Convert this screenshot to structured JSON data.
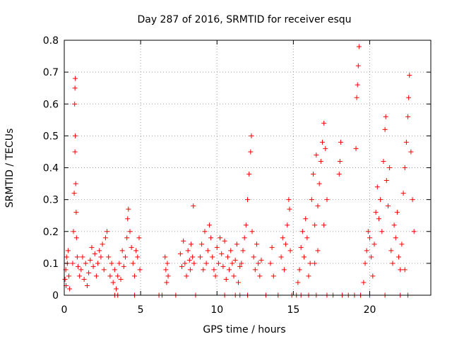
{
  "chart_data": {
    "type": "scatter",
    "title": "Day 287 of 2016, SRMTID for receiver esqu",
    "xlabel": "GPS time / hours",
    "ylabel": "SRMTID / TECUs",
    "xlim": [
      0,
      24
    ],
    "ylim": [
      0,
      0.8
    ],
    "grid": true,
    "marker": "+",
    "color": "#ff0000",
    "x_ticks": [
      0,
      5,
      10,
      15,
      20
    ],
    "x_tick_labels": [
      "0",
      "5",
      "10",
      "15",
      "20"
    ],
    "y_ticks": [
      0,
      0.1,
      0.2,
      0.3,
      0.4,
      0.5,
      0.6,
      0.7,
      0.8
    ],
    "y_tick_labels": [
      "0",
      "0.1",
      "0.2",
      "0.3",
      "0.4",
      "0.5",
      "0.6",
      "0.7",
      "0.8"
    ],
    "series": [
      {
        "name": "SRMTID",
        "points": [
          [
            0.05,
            0.05
          ],
          [
            0.1,
            0.08
          ],
          [
            0.15,
            0.12
          ],
          [
            0.2,
            0.1
          ],
          [
            0.25,
            0.14
          ],
          [
            0.3,
            0.06
          ],
          [
            0.35,
            0.02
          ],
          [
            0.12,
            0.03
          ],
          [
            0.55,
            0.1
          ],
          [
            0.6,
            0.2
          ],
          [
            0.65,
            0.32
          ],
          [
            0.7,
            0.45
          ],
          [
            0.72,
            0.5
          ],
          [
            0.75,
            0.35
          ],
          [
            0.78,
            0.26
          ],
          [
            0.68,
            0.6
          ],
          [
            0.7,
            0.65
          ],
          [
            0.72,
            0.68
          ],
          [
            0.8,
            0.18
          ],
          [
            0.85,
            0.12
          ],
          [
            0.9,
            0.09
          ],
          [
            1.0,
            0.06
          ],
          [
            1.1,
            0.08
          ],
          [
            1.2,
            0.12
          ],
          [
            1.3,
            0.05
          ],
          [
            1.4,
            0.1
          ],
          [
            1.5,
            0.03
          ],
          [
            1.6,
            0.07
          ],
          [
            1.7,
            0.11
          ],
          [
            1.8,
            0.15
          ],
          [
            1.9,
            0.09
          ],
          [
            2.0,
            0.13
          ],
          [
            2.1,
            0.06
          ],
          [
            2.2,
            0.1
          ],
          [
            2.3,
            0.14
          ],
          [
            2.4,
            0.12
          ],
          [
            2.5,
            0.16
          ],
          [
            2.6,
            0.08
          ],
          [
            2.7,
            0.18
          ],
          [
            2.8,
            0.2
          ],
          [
            2.9,
            0.12
          ],
          [
            3.0,
            0.06
          ],
          [
            3.1,
            0.1
          ],
          [
            3.2,
            0.04
          ],
          [
            3.3,
            0.08
          ],
          [
            3.4,
            0.02
          ],
          [
            3.5,
            0.06
          ],
          [
            3.6,
            0.1
          ],
          [
            3.7,
            0.05
          ],
          [
            3.8,
            0.14
          ],
          [
            3.9,
            0.09
          ],
          [
            4.0,
            0.12
          ],
          [
            4.1,
            0.18
          ],
          [
            4.15,
            0.24
          ],
          [
            4.2,
            0.27
          ],
          [
            4.3,
            0.2
          ],
          [
            4.4,
            0.15
          ],
          [
            4.5,
            0.1
          ],
          [
            4.6,
            0.06
          ],
          [
            4.7,
            0.14
          ],
          [
            4.8,
            0.12
          ],
          [
            4.9,
            0.18
          ],
          [
            4.95,
            0.08
          ],
          [
            3.3,
            0.0
          ],
          [
            3.5,
            0.0
          ],
          [
            4.6,
            0.0
          ],
          [
            6.2,
            0.0
          ],
          [
            6.4,
            0.0
          ],
          [
            6.6,
            0.12
          ],
          [
            6.65,
            0.08
          ],
          [
            6.7,
            0.04
          ],
          [
            6.75,
            0.1
          ],
          [
            6.8,
            0.06
          ],
          [
            7.3,
            0.0
          ],
          [
            7.6,
            0.13
          ],
          [
            7.7,
            0.09
          ],
          [
            7.8,
            0.17
          ],
          [
            7.9,
            0.1
          ],
          [
            8.0,
            0.06
          ],
          [
            8.1,
            0.14
          ],
          [
            8.2,
            0.11
          ],
          [
            8.25,
            0.08
          ],
          [
            8.3,
            0.16
          ],
          [
            8.4,
            0.12
          ],
          [
            8.45,
            0.28
          ],
          [
            8.5,
            0.1
          ],
          [
            8.6,
            0.0
          ],
          [
            8.9,
            0.12
          ],
          [
            9.0,
            0.16
          ],
          [
            9.1,
            0.08
          ],
          [
            9.2,
            0.2
          ],
          [
            9.3,
            0.1
          ],
          [
            9.4,
            0.14
          ],
          [
            9.5,
            0.22
          ],
          [
            9.6,
            0.18
          ],
          [
            9.7,
            0.12
          ],
          [
            9.8,
            0.08
          ],
          [
            9.9,
            0.06
          ],
          [
            10.0,
            0.15
          ],
          [
            10.1,
            0.1
          ],
          [
            10.2,
            0.18
          ],
          [
            10.3,
            0.13
          ],
          [
            10.4,
            0.09
          ],
          [
            10.5,
            0.17
          ],
          [
            10.6,
            0.05
          ],
          [
            10.7,
            0.12
          ],
          [
            10.8,
            0.08
          ],
          [
            10.9,
            0.14
          ],
          [
            11.0,
            0.1
          ],
          [
            11.1,
            0.06
          ],
          [
            11.2,
            0.11
          ],
          [
            11.3,
            0.16
          ],
          [
            11.4,
            0.04
          ],
          [
            11.5,
            0.09
          ],
          [
            10.5,
            0.0
          ],
          [
            11.2,
            0.0
          ],
          [
            11.5,
            0.0
          ],
          [
            11.6,
            0.1
          ],
          [
            11.7,
            0.14
          ],
          [
            11.8,
            0.18
          ],
          [
            11.9,
            0.22
          ],
          [
            12.0,
            0.3
          ],
          [
            12.1,
            0.38
          ],
          [
            12.2,
            0.45
          ],
          [
            12.25,
            0.5
          ],
          [
            12.3,
            0.2
          ],
          [
            12.4,
            0.12
          ],
          [
            12.5,
            0.08
          ],
          [
            12.6,
            0.16
          ],
          [
            12.7,
            0.1
          ],
          [
            12.8,
            0.06
          ],
          [
            12.9,
            0.11
          ],
          [
            12.0,
            0.0
          ],
          [
            13.2,
            0.0
          ],
          [
            13.5,
            0.1
          ],
          [
            13.6,
            0.15
          ],
          [
            13.7,
            0.06
          ],
          [
            14.0,
            0.0
          ],
          [
            14.2,
            0.12
          ],
          [
            14.3,
            0.18
          ],
          [
            14.4,
            0.08
          ],
          [
            14.5,
            0.16
          ],
          [
            14.6,
            0.22
          ],
          [
            14.7,
            0.3
          ],
          [
            14.75,
            0.27
          ],
          [
            14.8,
            0.14
          ],
          [
            14.9,
            0.0
          ],
          [
            15.2,
            0.0
          ],
          [
            15.3,
            0.04
          ],
          [
            15.4,
            0.08
          ],
          [
            15.5,
            0.15
          ],
          [
            15.6,
            0.2
          ],
          [
            15.7,
            0.12
          ],
          [
            15.8,
            0.24
          ],
          [
            15.9,
            0.18
          ],
          [
            16.0,
            0.06
          ],
          [
            16.1,
            0.1
          ],
          [
            16.2,
            0.3
          ],
          [
            16.3,
            0.38
          ],
          [
            16.4,
            0.22
          ],
          [
            16.5,
            0.44
          ],
          [
            16.6,
            0.28
          ],
          [
            16.7,
            0.35
          ],
          [
            16.8,
            0.42
          ],
          [
            16.9,
            0.48
          ],
          [
            17.0,
            0.54
          ],
          [
            17.1,
            0.46
          ],
          [
            17.2,
            0.3
          ],
          [
            17.0,
            0.22
          ],
          [
            16.6,
            0.14
          ],
          [
            16.4,
            0.1
          ],
          [
            15.5,
            0.0
          ],
          [
            16.0,
            0.0
          ],
          [
            16.5,
            0.0
          ],
          [
            17.2,
            0.0
          ],
          [
            17.6,
            0.0
          ],
          [
            18.0,
            0.38
          ],
          [
            18.05,
            0.42
          ],
          [
            18.1,
            0.48
          ],
          [
            18.2,
            0.0
          ],
          [
            18.6,
            0.0
          ],
          [
            19.0,
            0.0
          ],
          [
            19.1,
            0.46
          ],
          [
            19.15,
            0.62
          ],
          [
            19.2,
            0.66
          ],
          [
            19.25,
            0.72
          ],
          [
            19.3,
            0.78
          ],
          [
            19.4,
            0.0
          ],
          [
            19.6,
            0.04
          ],
          [
            19.7,
            0.1
          ],
          [
            19.8,
            0.14
          ],
          [
            19.9,
            0.2
          ],
          [
            20.0,
            0.18
          ],
          [
            20.1,
            0.12
          ],
          [
            20.2,
            0.06
          ],
          [
            20.3,
            0.16
          ],
          [
            20.4,
            0.26
          ],
          [
            20.5,
            0.34
          ],
          [
            20.6,
            0.24
          ],
          [
            20.7,
            0.3
          ],
          [
            20.8,
            0.2
          ],
          [
            20.9,
            0.42
          ],
          [
            21.0,
            0.52
          ],
          [
            21.05,
            0.56
          ],
          [
            21.1,
            0.36
          ],
          [
            21.2,
            0.28
          ],
          [
            21.3,
            0.4
          ],
          [
            21.4,
            0.14
          ],
          [
            21.5,
            0.1
          ],
          [
            21.6,
            0.22
          ],
          [
            21.7,
            0.18
          ],
          [
            21.8,
            0.26
          ],
          [
            21.9,
            0.12
          ],
          [
            22.0,
            0.08
          ],
          [
            22.1,
            0.16
          ],
          [
            22.2,
            0.32
          ],
          [
            22.3,
            0.4
          ],
          [
            22.4,
            0.48
          ],
          [
            22.5,
            0.56
          ],
          [
            22.55,
            0.62
          ],
          [
            22.6,
            0.69
          ],
          [
            22.7,
            0.45
          ],
          [
            22.8,
            0.3
          ],
          [
            22.9,
            0.2
          ],
          [
            22.3,
            0.08
          ],
          [
            22.0,
            0.0
          ],
          [
            20.0,
            0.0
          ],
          [
            21.0,
            0.0
          ],
          [
            22.5,
            0.0
          ]
        ]
      }
    ]
  }
}
